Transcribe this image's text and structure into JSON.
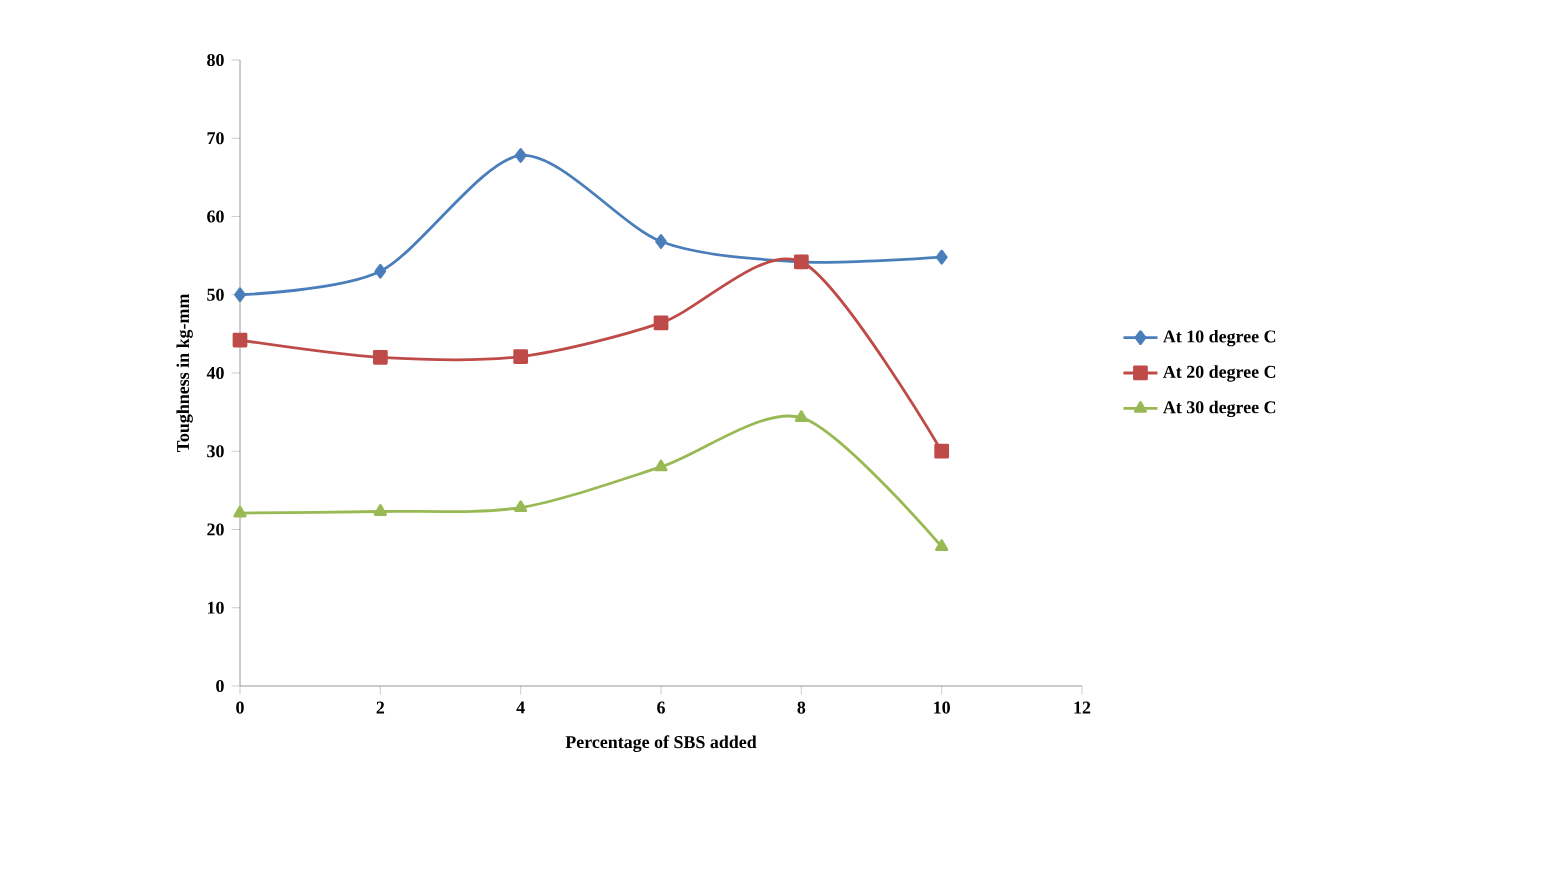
{
  "chart_data": {
    "type": "line",
    "xlabel": "Percentage of SBS added",
    "ylabel": "Toughness in kg-mm",
    "x": [
      0,
      2,
      4,
      6,
      8,
      10
    ],
    "series": [
      {
        "name": "At 10 degree C",
        "color": "#4a7ebb",
        "marker": "diamond",
        "values": [
          50,
          53,
          67.8,
          56.8,
          54.2,
          54.8
        ]
      },
      {
        "name": "At 20 degree C",
        "color": "#be4b48",
        "marker": "square",
        "values": [
          44.2,
          42,
          42.1,
          46.4,
          54.2,
          30
        ]
      },
      {
        "name": "At 30 degree C",
        "color": "#98b954",
        "marker": "triangle",
        "values": [
          22.1,
          22.3,
          22.8,
          28,
          34.3,
          17.8
        ]
      }
    ],
    "xlim": [
      0,
      12
    ],
    "xticks": [
      0,
      2,
      4,
      6,
      8,
      10,
      12
    ],
    "ylim": [
      0,
      80
    ],
    "yticks": [
      0,
      10,
      20,
      30,
      40,
      50,
      60,
      70,
      80
    ],
    "grid": false,
    "legend": "right",
    "line_style": "solid"
  }
}
